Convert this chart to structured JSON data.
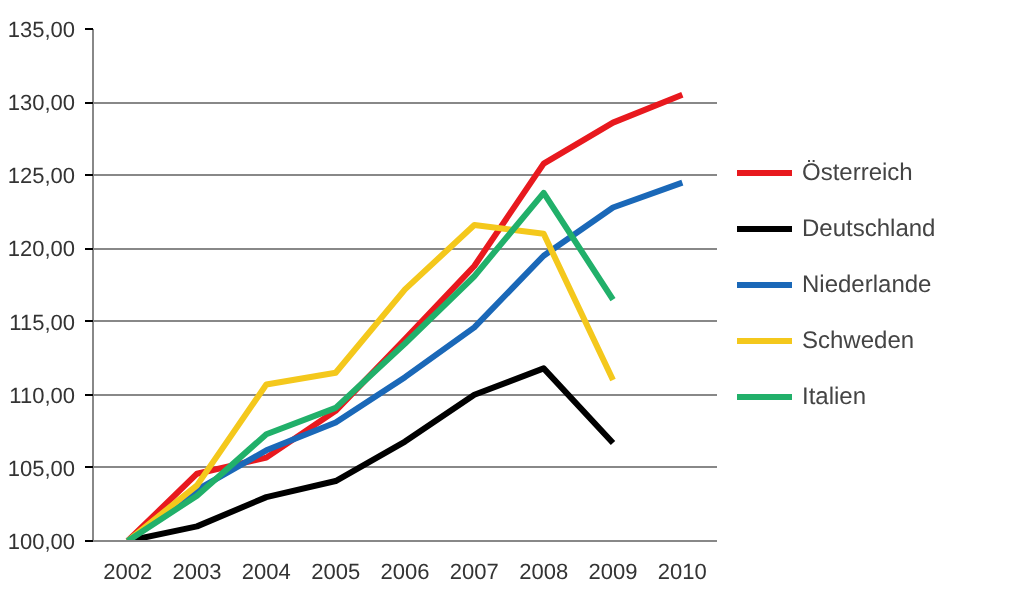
{
  "chart_data": {
    "type": "line",
    "categories": [
      "2002",
      "2003",
      "2004",
      "2005",
      "2006",
      "2007",
      "2008",
      "2009",
      "2010"
    ],
    "series": [
      {
        "name": "Österreich",
        "color": "#e8191e",
        "values": [
          100,
          104.6,
          105.7,
          108.9,
          113.8,
          118.8,
          125.8,
          128.6,
          130.5
        ]
      },
      {
        "name": "Deutschland",
        "color": "#000000",
        "values": [
          100,
          101,
          103,
          104.1,
          106.8,
          110,
          111.8,
          106.7,
          null
        ]
      },
      {
        "name": "Niederlande",
        "color": "#1a68b8",
        "values": [
          100,
          103.5,
          106.2,
          108.1,
          111.2,
          114.6,
          119.5,
          122.8,
          124.5
        ]
      },
      {
        "name": "Schweden",
        "color": "#f4c81c",
        "values": [
          100,
          103.8,
          110.7,
          111.5,
          117.2,
          121.6,
          121,
          111,
          null
        ]
      },
      {
        "name": "Italien",
        "color": "#21b06a",
        "values": [
          100,
          103.1,
          107.3,
          109.1,
          113.5,
          118.1,
          123.8,
          116.5,
          null
        ]
      }
    ],
    "ylim": [
      100,
      135
    ],
    "yticks": [
      {
        "value": 100,
        "label": "100,00"
      },
      {
        "value": 105,
        "label": "105,00"
      },
      {
        "value": 110,
        "label": "110,00"
      },
      {
        "value": 115,
        "label": "115,00"
      },
      {
        "value": 120,
        "label": "120,00"
      },
      {
        "value": 125,
        "label": "125,00"
      },
      {
        "value": 130,
        "label": "130,00"
      },
      {
        "value": 135,
        "label": "135,00"
      }
    ],
    "grid": "y",
    "legend": "right",
    "marker": "none",
    "line_style": "solid"
  }
}
